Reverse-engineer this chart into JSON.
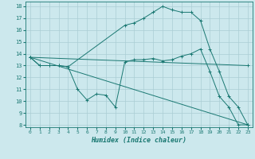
{
  "title": "",
  "xlabel": "Humidex (Indice chaleur)",
  "bg_color": "#cce8ed",
  "grid_color": "#aacdd4",
  "line_color": "#1a7872",
  "spine_color": "#1a7872",
  "xlim": [
    -0.5,
    23.5
  ],
  "ylim": [
    7.8,
    18.4
  ],
  "yticks": [
    8,
    9,
    10,
    11,
    12,
    13,
    14,
    15,
    16,
    17,
    18
  ],
  "xticks": [
    0,
    1,
    2,
    3,
    4,
    5,
    6,
    7,
    8,
    9,
    10,
    11,
    12,
    13,
    14,
    15,
    16,
    17,
    18,
    19,
    20,
    21,
    22,
    23
  ],
  "lines": [
    {
      "x": [
        0,
        1,
        2,
        3,
        4,
        5,
        6,
        7,
        8,
        9,
        10,
        11,
        12,
        13,
        14,
        15,
        16,
        17,
        18,
        19,
        20,
        21,
        22,
        23
      ],
      "y": [
        13.7,
        13.0,
        13.0,
        13.0,
        12.9,
        11.0,
        10.1,
        10.6,
        10.5,
        9.5,
        13.3,
        13.5,
        13.5,
        13.6,
        13.4,
        13.5,
        13.8,
        14.0,
        14.4,
        12.5,
        10.4,
        9.5,
        8.0,
        8.0
      ]
    },
    {
      "x": [
        0,
        1,
        2,
        3,
        4,
        10,
        11,
        12,
        13,
        14,
        15,
        16,
        17,
        18,
        19,
        20,
        21,
        22,
        23
      ],
      "y": [
        13.7,
        13.0,
        13.0,
        13.0,
        12.9,
        16.4,
        16.6,
        17.0,
        17.5,
        18.0,
        17.7,
        17.5,
        17.5,
        16.8,
        14.4,
        12.5,
        10.4,
        9.5,
        8.0
      ]
    },
    {
      "x": [
        0,
        23
      ],
      "y": [
        13.7,
        8.0
      ]
    },
    {
      "x": [
        0,
        23
      ],
      "y": [
        13.7,
        13.0
      ]
    }
  ]
}
